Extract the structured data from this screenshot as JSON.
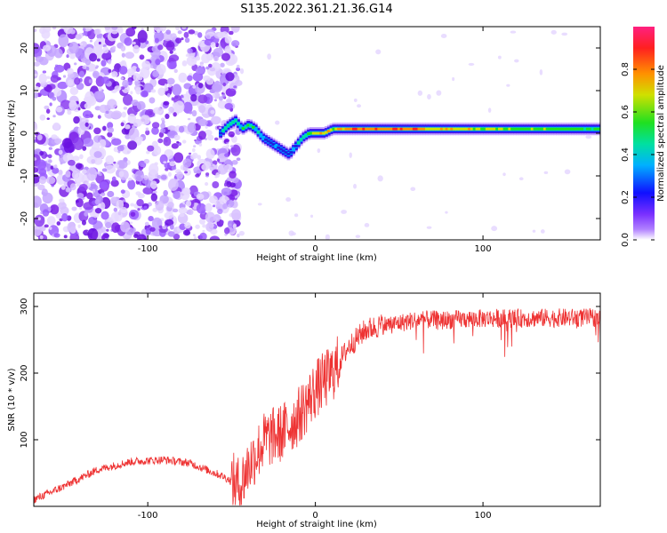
{
  "chart_data": [
    {
      "type": "heatmap",
      "title": "S135.2022.361.21.36.G14",
      "xlabel": "Height of straight line (km)",
      "ylabel": "Frequency (Hz)",
      "xlim": [
        -168,
        170
      ],
      "ylim": [
        -25,
        25
      ],
      "x_ticks": [
        -100,
        0,
        100
      ],
      "y_ticks": [
        -20,
        -10,
        0,
        10,
        20
      ],
      "colorbar": {
        "label": "Normalized spectral amplitude",
        "range": [
          0,
          1
        ],
        "ticks": [
          0.0,
          0.2,
          0.4,
          0.6,
          0.8
        ],
        "colormap": "rainbow"
      },
      "noise_region_x": [
        -168,
        -50
      ],
      "ridge": {
        "x": [
          -57,
          -52,
          -48,
          -44,
          -40,
          -36,
          -32,
          -28,
          -24,
          -20,
          -16,
          -12,
          -8,
          -4,
          0,
          5,
          10,
          20,
          40,
          60,
          70,
          90,
          100,
          120,
          140,
          160,
          170
        ],
        "frequency": [
          0,
          2,
          3,
          1,
          2,
          1,
          -1,
          -2,
          -3,
          -4,
          -5,
          -3,
          -1,
          0,
          0,
          0,
          1,
          1,
          1,
          1,
          1,
          1,
          1,
          1,
          1,
          1,
          1
        ],
        "amplitude": [
          0.4,
          0.5,
          0.45,
          0.5,
          0.55,
          0.45,
          0.35,
          0.35,
          0.3,
          0.3,
          0.25,
          0.35,
          0.55,
          0.6,
          0.75,
          0.8,
          0.7,
          0.9,
          0.85,
          0.9,
          0.8,
          0.75,
          0.7,
          0.65,
          0.6,
          0.6,
          0.6
        ]
      },
      "colors": {
        "noise": "#8a3cf0",
        "ridge_high": "#e8283a",
        "ridge_low": "#2020e0"
      }
    },
    {
      "type": "line",
      "xlabel": "Height of straight line (km)",
      "ylabel": "SNR (10 * v/v)",
      "xlim": [
        -168,
        170
      ],
      "ylim": [
        0,
        320
      ],
      "x_ticks": [
        -100,
        0,
        100
      ],
      "y_ticks": [
        100,
        200,
        300
      ],
      "color": "#ee3333",
      "trend": {
        "x": [
          -168,
          -150,
          -130,
          -110,
          -90,
          -75,
          -65,
          -55,
          -45,
          -40,
          -30,
          -20,
          -10,
          0,
          10,
          20,
          30,
          40,
          50,
          60,
          80,
          100,
          120,
          140,
          170
        ],
        "y": [
          10,
          30,
          55,
          67,
          70,
          65,
          55,
          45,
          30,
          60,
          100,
          110,
          135,
          175,
          200,
          240,
          265,
          272,
          275,
          280,
          280,
          282,
          282,
          283,
          283
        ]
      }
    }
  ]
}
